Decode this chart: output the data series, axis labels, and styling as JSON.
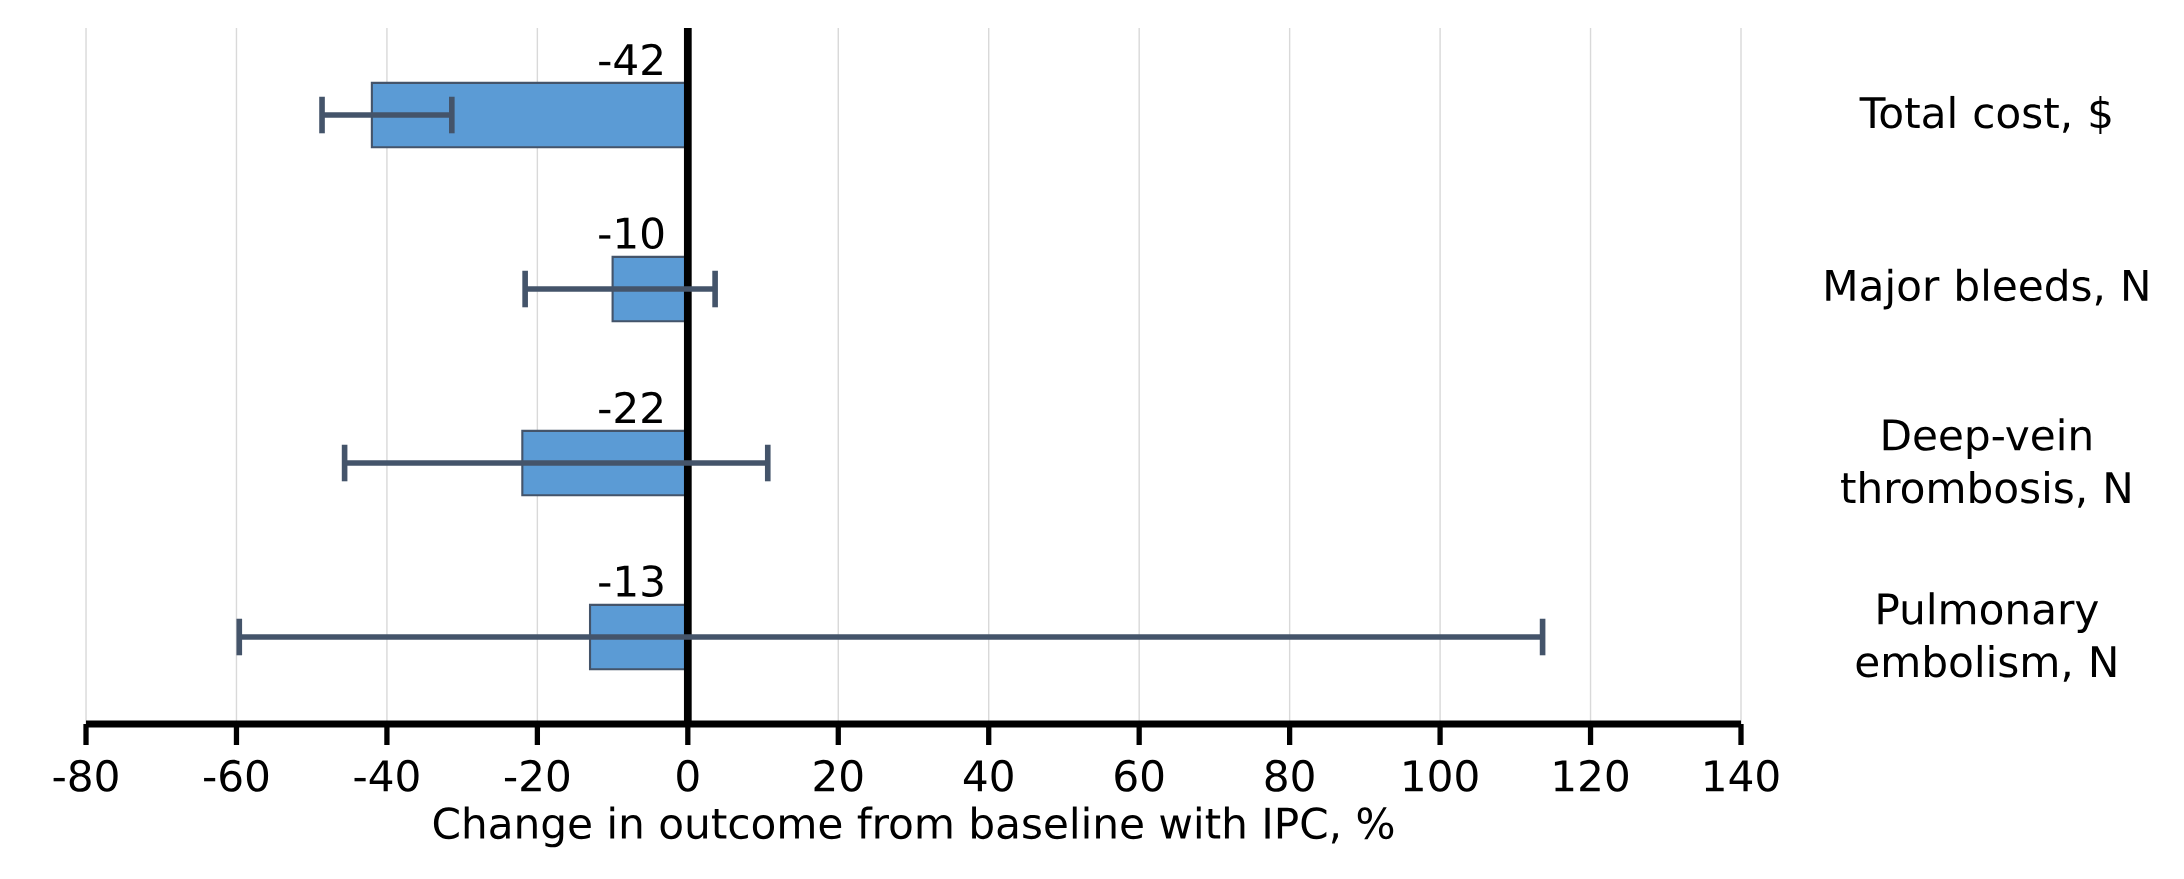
{
  "chart_data": {
    "type": "bar",
    "orientation": "horizontal",
    "categories": [
      "Total cost, $",
      "Major bleeds, N",
      "Deep-vein thrombosis, N",
      "Pulmonary embolism, N"
    ],
    "values": [
      -42,
      -10,
      -22,
      -13
    ],
    "errors": [
      [
        -49,
        -31
      ],
      [
        -22,
        4
      ],
      [
        -46,
        11
      ],
      [
        -60,
        114
      ]
    ],
    "color": "#5b9bd5",
    "data_labels": true,
    "xlabel": "Change in outcome from baseline with IPC, %",
    "xlim": [
      -80,
      140
    ],
    "xticks": [
      -80,
      -60,
      -40,
      -20,
      0,
      20,
      40,
      60,
      80,
      100,
      120,
      140
    ],
    "grid": "x"
  }
}
